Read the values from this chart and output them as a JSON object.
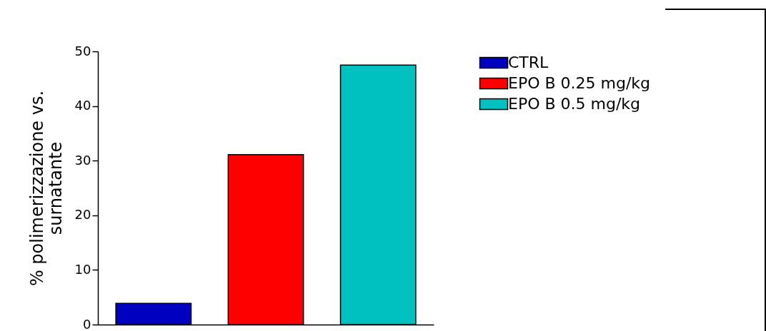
{
  "chart_data": {
    "type": "bar",
    "ylabel": "% polimerizzazione vs. surnatante",
    "categories": [
      null
    ],
    "series": [
      {
        "name": "CTRL",
        "color": "#0000c0",
        "values": [
          3.9
        ]
      },
      {
        "name": "EPO B 0.25 mg/kg",
        "color": "#ff0000",
        "values": [
          31.1
        ]
      },
      {
        "name": "EPO B 0.5 mg/kg",
        "color": "#00c0c0",
        "values": [
          47.5
        ]
      }
    ],
    "ylim": [
      0,
      50
    ],
    "yticks": [
      0,
      10,
      20,
      30,
      40,
      50
    ],
    "legend": "top right",
    "tick_labels": "y",
    "grid": false
  }
}
